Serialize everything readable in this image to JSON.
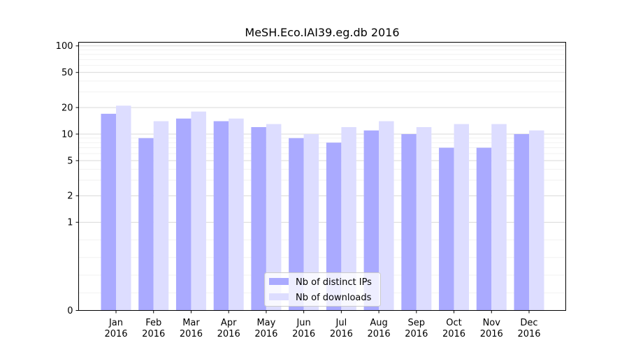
{
  "chart_data": {
    "type": "bar",
    "title": "MeSH.Eco.IAI39.eg.db 2016",
    "xlabel": "",
    "ylabel": "",
    "categories": [
      [
        "Jan",
        "2016"
      ],
      [
        "Feb",
        "2016"
      ],
      [
        "Mar",
        "2016"
      ],
      [
        "Apr",
        "2016"
      ],
      [
        "May",
        "2016"
      ],
      [
        "Jun",
        "2016"
      ],
      [
        "Jul",
        "2016"
      ],
      [
        "Aug",
        "2016"
      ],
      [
        "Sep",
        "2016"
      ],
      [
        "Oct",
        "2016"
      ],
      [
        "Nov",
        "2016"
      ],
      [
        "Dec",
        "2016"
      ]
    ],
    "series": [
      {
        "name": "Nb of distinct IPs",
        "color": "#aaaaff",
        "values": [
          17,
          9,
          15,
          14,
          12,
          9,
          8,
          11,
          10,
          7,
          7,
          10
        ]
      },
      {
        "name": "Nb of downloads",
        "color": "#ddddff",
        "values": [
          21,
          14,
          18,
          15,
          13,
          10,
          12,
          14,
          12,
          13,
          13,
          11
        ]
      }
    ],
    "y_scale": "symlog",
    "ylim": [
      0,
      110
    ],
    "y_ticks": [
      0,
      1,
      2,
      5,
      10,
      20,
      50,
      100
    ],
    "grid": "horizontal",
    "legend_position": "bottom-center"
  }
}
